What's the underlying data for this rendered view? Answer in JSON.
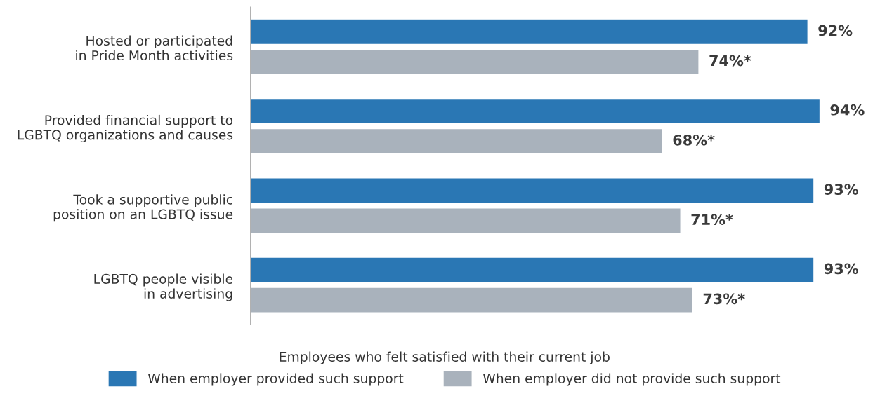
{
  "chart_data": {
    "type": "bar",
    "orientation": "horizontal",
    "categories": [
      "Hosted or participated\nin Pride Month activities",
      "Provided financial support to\nLGBTQ organizations and causes",
      "Took a supportive public\nposition on an LGBTQ issue",
      "LGBTQ people visible\nin advertising"
    ],
    "series": [
      {
        "name": "When employer provided such support",
        "color": "#2a77b4",
        "values": [
          92,
          94,
          93,
          93
        ],
        "value_labels": [
          "92%",
          "94%",
          "93%",
          "93%"
        ]
      },
      {
        "name": "When employer did not provide such support",
        "color": "#a9b2bc",
        "values": [
          74,
          68,
          71,
          73
        ],
        "value_labels": [
          "74%*",
          "68%*",
          "71%*",
          "73%*"
        ]
      }
    ],
    "legend_title": "Employees who felt satisfied with their current job",
    "legend": "bottom",
    "grid": false
  }
}
